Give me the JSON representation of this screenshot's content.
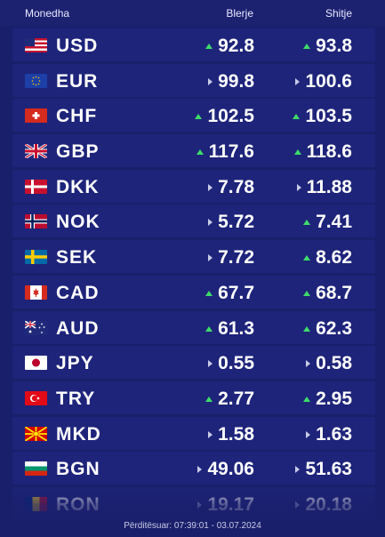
{
  "header": {
    "currency": "Monedha",
    "buy": "Blerje",
    "sell": "Shitje"
  },
  "rows": [
    {
      "code": "USD",
      "flag": "us-flag-icon",
      "buy": "92.8",
      "buy_trend": "up",
      "sell": "93.8",
      "sell_trend": "up"
    },
    {
      "code": "EUR",
      "flag": "eu-flag-icon",
      "buy": "99.8",
      "buy_trend": "same",
      "sell": "100.6",
      "sell_trend": "same"
    },
    {
      "code": "CHF",
      "flag": "ch-flag-icon",
      "buy": "102.5",
      "buy_trend": "up",
      "sell": "103.5",
      "sell_trend": "up"
    },
    {
      "code": "GBP",
      "flag": "gb-flag-icon",
      "buy": "117.6",
      "buy_trend": "up",
      "sell": "118.6",
      "sell_trend": "up"
    },
    {
      "code": "DKK",
      "flag": "dk-flag-icon",
      "buy": "7.78",
      "buy_trend": "same",
      "sell": "11.88",
      "sell_trend": "same"
    },
    {
      "code": "NOK",
      "flag": "no-flag-icon",
      "buy": "5.72",
      "buy_trend": "same",
      "sell": "7.41",
      "sell_trend": "up"
    },
    {
      "code": "SEK",
      "flag": "se-flag-icon",
      "buy": "7.72",
      "buy_trend": "same",
      "sell": "8.62",
      "sell_trend": "up"
    },
    {
      "code": "CAD",
      "flag": "ca-flag-icon",
      "buy": "67.7",
      "buy_trend": "up",
      "sell": "68.7",
      "sell_trend": "up"
    },
    {
      "code": "AUD",
      "flag": "au-flag-icon",
      "buy": "61.3",
      "buy_trend": "up",
      "sell": "62.3",
      "sell_trend": "up"
    },
    {
      "code": "JPY",
      "flag": "jp-flag-icon",
      "buy": "0.55",
      "buy_trend": "same",
      "sell": "0.58",
      "sell_trend": "same"
    },
    {
      "code": "TRY",
      "flag": "tr-flag-icon",
      "buy": "2.77",
      "buy_trend": "up",
      "sell": "2.95",
      "sell_trend": "up"
    },
    {
      "code": "MKD",
      "flag": "mk-flag-icon",
      "buy": "1.58",
      "buy_trend": "same",
      "sell": "1.63",
      "sell_trend": "same"
    },
    {
      "code": "BGN",
      "flag": "bg-flag-icon",
      "buy": "49.06",
      "buy_trend": "same",
      "sell": "51.63",
      "sell_trend": "same"
    },
    {
      "code": "RON",
      "flag": "ro-flag-icon",
      "buy": "19.17",
      "buy_trend": "same",
      "sell": "20.18",
      "sell_trend": "same"
    }
  ],
  "footer": {
    "updated": "Përditësuar: 07:39:01 - 03.07.2024"
  },
  "colors": {
    "background": "#1a1f6b",
    "row": "#1e247a",
    "up": "#3ddc6a",
    "same": "#c8cbe6"
  }
}
